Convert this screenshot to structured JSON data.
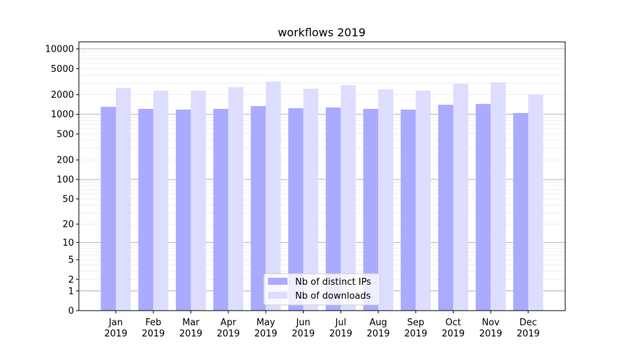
{
  "chart_data": {
    "type": "bar",
    "title": "workflows 2019",
    "xlabel": "",
    "ylabel": "",
    "y_scale": "log10(1+y)",
    "ylim": [
      0,
      12800
    ],
    "grid": true,
    "legend_position": "bottom-center",
    "categories": [
      "Jan\n2019",
      "Feb\n2019",
      "Mar\n2019",
      "Apr\n2019",
      "May\n2019",
      "Jun\n2019",
      "Jul\n2019",
      "Aug\n2019",
      "Sep\n2019",
      "Oct\n2019",
      "Nov\n2019",
      "Dec\n2019"
    ],
    "y_ticks": [
      0,
      1,
      2,
      5,
      10,
      20,
      50,
      100,
      200,
      500,
      1000,
      2000,
      5000,
      10000
    ],
    "series": [
      {
        "name": "Nb of distinct IPs",
        "color": "#aaaaff",
        "values": [
          1300,
          1210,
          1180,
          1210,
          1335,
          1240,
          1270,
          1210,
          1180,
          1400,
          1440,
          1045
        ]
      },
      {
        "name": "Nb of downloads",
        "color": "#ddddff",
        "values": [
          2530,
          2290,
          2290,
          2590,
          3150,
          2465,
          2790,
          2405,
          2290,
          2930,
          3080,
          2025
        ]
      }
    ]
  }
}
